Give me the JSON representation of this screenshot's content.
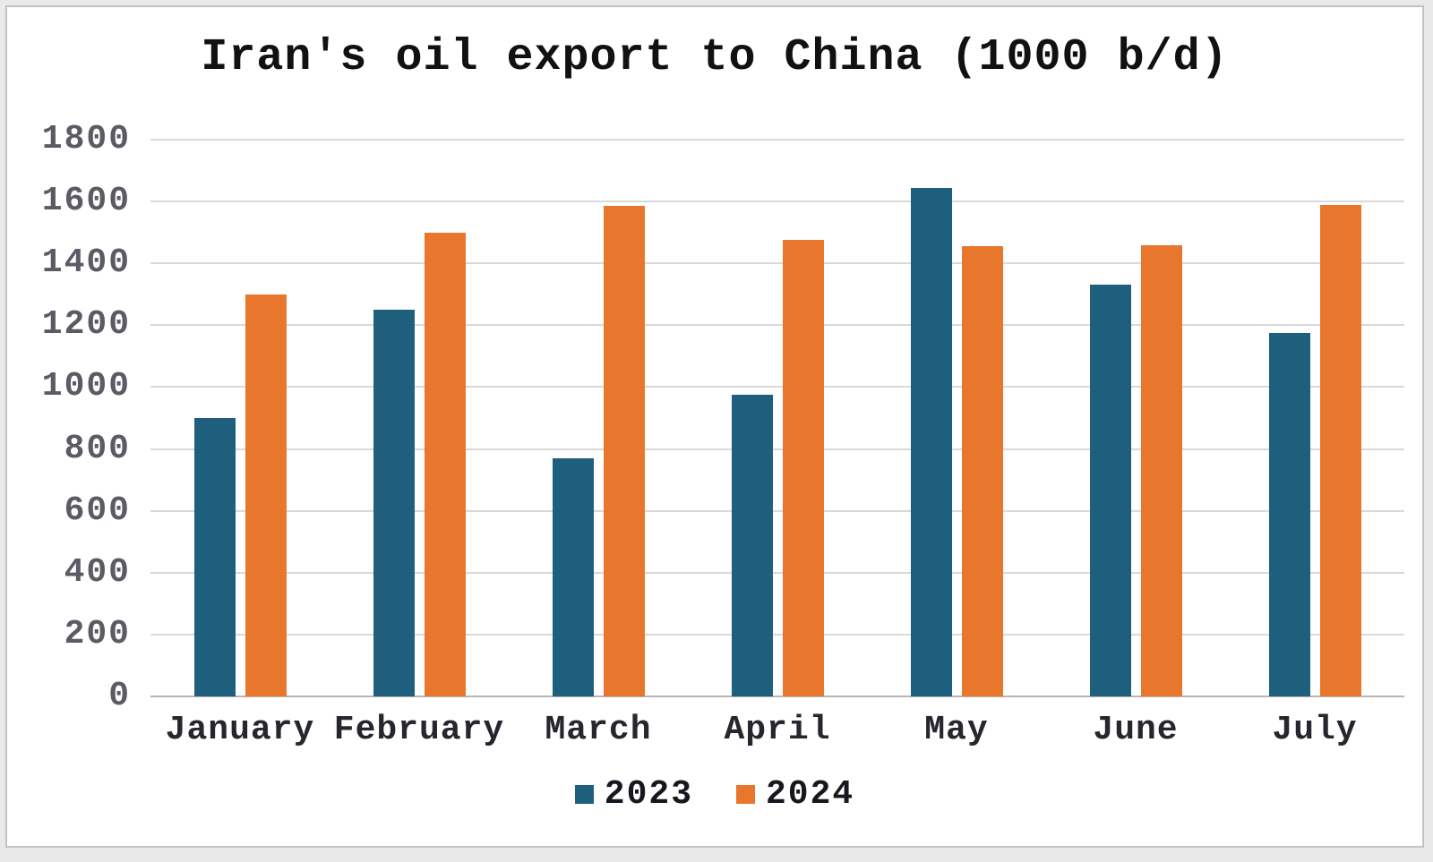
{
  "chart_data": {
    "type": "bar",
    "title": "Iran's oil export to China (1000 b/d)",
    "categories": [
      "January",
      "February",
      "March",
      "April",
      "May",
      "June",
      "July"
    ],
    "series": [
      {
        "name": "2023",
        "color": "#1f5f7e",
        "values": [
          900,
          1250,
          770,
          975,
          1645,
          1330,
          1175
        ]
      },
      {
        "name": "2024",
        "color": "#e8772d",
        "values": [
          1300,
          1500,
          1585,
          1475,
          1455,
          1460,
          1590
        ]
      }
    ],
    "xlabel": "",
    "ylabel": "",
    "ylim": [
      0,
      1800
    ],
    "ytick_labels": [
      "0",
      "200",
      "400",
      "600",
      "800",
      "1000",
      "1200",
      "1400",
      "1600",
      "1800"
    ],
    "grid": "horizontal",
    "legend_position": "bottom",
    "gridline_color": "#d9d9d9",
    "axis_line_color": "#b5b5b5",
    "background_color": "#ffffff"
  }
}
